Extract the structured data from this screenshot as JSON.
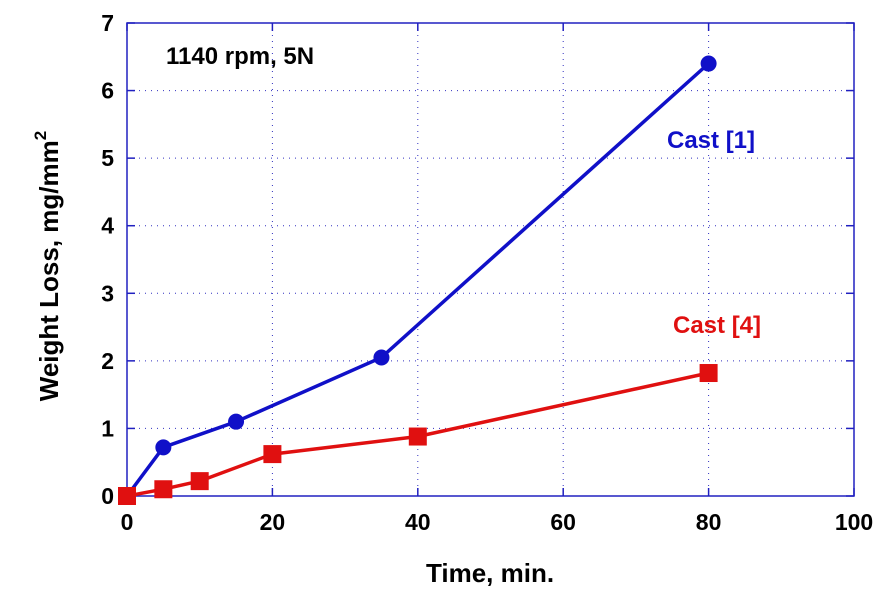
{
  "chart_data": {
    "type": "line",
    "annotation": "1140 rpm, 5N",
    "xlabel": "Time, min.",
    "ylabel": "Weight Loss, mg/mm",
    "ylabel_superscript": "2",
    "xlim": [
      0,
      100
    ],
    "ylim": [
      0,
      7
    ],
    "xticks": [
      "0",
      "20",
      "40",
      "60",
      "80",
      "100"
    ],
    "yticks": [
      "0",
      "1",
      "2",
      "3",
      "4",
      "5",
      "6",
      "7"
    ],
    "grid": true,
    "legend": "none",
    "series": [
      {
        "name": "Cast [1]",
        "color": "#1010c8",
        "marker": "circle",
        "x": [
          0,
          5,
          15,
          35,
          80
        ],
        "y": [
          0,
          0.72,
          1.1,
          2.05,
          6.4
        ]
      },
      {
        "name": "Cast [4]",
        "color": "#e01010",
        "marker": "square",
        "x": [
          0,
          5,
          10,
          20,
          40,
          80
        ],
        "y": [
          0,
          0.1,
          0.22,
          0.62,
          0.88,
          1.82
        ]
      }
    ]
  }
}
